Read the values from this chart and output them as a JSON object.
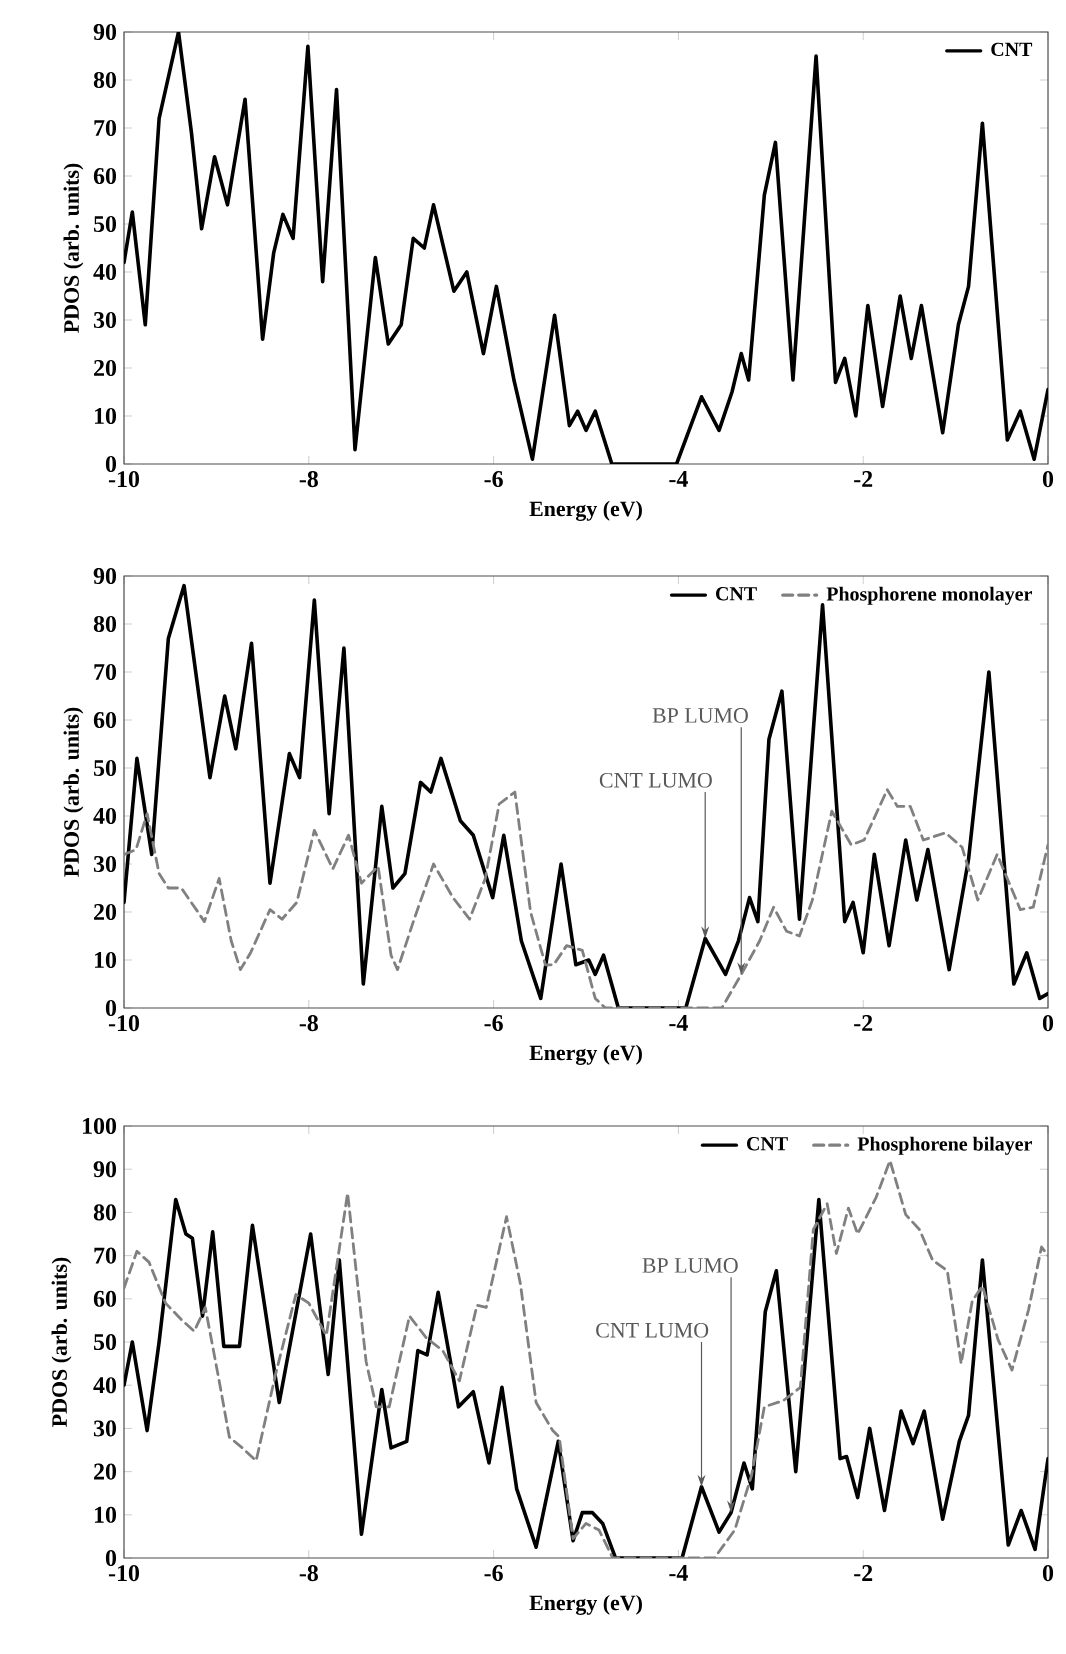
{
  "chart_data": [
    {
      "type": "line",
      "xlabel": "Energy (eV)",
      "ylabel": "PDOS (arb. units)",
      "xlim": [
        -10,
        0
      ],
      "ylim": [
        0,
        90
      ],
      "xticks": [
        -10,
        -8,
        -6,
        -4,
        -2,
        0
      ],
      "yticks": [
        0,
        10,
        20,
        30,
        40,
        50,
        60,
        70,
        80,
        90
      ],
      "legend": "top right",
      "series": [
        {
          "name": "CNT",
          "color": "#000000",
          "line_style": "solid",
          "x": [
            -10,
            -9.91,
            -9.77,
            -9.62,
            -9.55,
            -9.41,
            -9.27,
            -9.16,
            -9.02,
            -8.88,
            -8.69,
            -8.5,
            -8.38,
            -8.28,
            -8.17,
            -8.01,
            -7.85,
            -7.7,
            -7.5,
            -7.28,
            -7.14,
            -7.0,
            -6.87,
            -6.75,
            -6.65,
            -6.43,
            -6.29,
            -6.11,
            -5.97,
            -5.78,
            -5.58,
            -5.34,
            -5.18,
            -5.09,
            -5.0,
            -4.9,
            -4.72,
            -4.02,
            -3.75,
            -3.56,
            -3.42,
            -3.32,
            -3.24,
            -3.07,
            -2.95,
            -2.76,
            -2.51,
            -2.3,
            -2.2,
            -2.08,
            -1.95,
            -1.79,
            -1.6,
            -1.48,
            -1.37,
            -1.14,
            -0.97,
            -0.86,
            -0.71,
            -0.44,
            -0.3,
            -0.15,
            0
          ],
          "values": [
            42,
            52.5,
            29,
            72,
            78,
            90,
            69,
            49,
            64,
            54,
            76,
            26,
            44,
            52,
            47,
            87,
            38,
            78,
            3,
            43,
            25,
            29,
            47,
            45,
            54,
            36,
            40,
            23,
            37,
            17.5,
            1,
            31,
            8,
            11,
            7,
            11,
            0,
            0,
            14,
            7,
            15,
            23,
            17.5,
            56,
            67,
            17.5,
            85,
            17,
            22,
            10,
            33,
            12,
            35,
            22,
            33,
            6.5,
            29,
            37,
            71,
            5,
            11,
            1,
            15.5
          ]
        }
      ]
    },
    {
      "type": "line",
      "xlabel": "Energy (eV)",
      "ylabel": "PDOS (arb. units)",
      "xlim": [
        -10,
        0
      ],
      "ylim": [
        0,
        90
      ],
      "xticks": [
        -10,
        -8,
        -6,
        -4,
        -2,
        0
      ],
      "yticks": [
        0,
        10,
        20,
        30,
        40,
        50,
        60,
        70,
        80,
        90
      ],
      "legend": "top right",
      "annotations": [
        {
          "text": "CNT LUMO",
          "x": -3.71,
          "y": 14.5
        },
        {
          "text": "BP LUMO",
          "x": -3.32,
          "y": 7
        }
      ],
      "series": [
        {
          "name": "CNT",
          "color": "#000000",
          "line_style": "solid",
          "x": [
            -10,
            -9.86,
            -9.7,
            -9.52,
            -9.35,
            -9.07,
            -8.91,
            -8.79,
            -8.62,
            -8.42,
            -8.21,
            -8.1,
            -7.94,
            -7.78,
            -7.62,
            -7.41,
            -7.21,
            -7.09,
            -6.96,
            -6.79,
            -6.68,
            -6.57,
            -6.36,
            -6.22,
            -6.01,
            -5.89,
            -5.7,
            -5.49,
            -5.27,
            -5.11,
            -4.97,
            -4.9,
            -4.81,
            -4.65,
            -3.92,
            -3.71,
            -3.49,
            -3.35,
            -3.23,
            -3.14,
            -3.02,
            -2.88,
            -2.69,
            -2.44,
            -2.2,
            -2.11,
            -2.0,
            -1.88,
            -1.72,
            -1.54,
            -1.42,
            -1.3,
            -1.07,
            -0.86,
            -0.64,
            -0.37,
            -0.23,
            -0.09,
            0
          ],
          "values": [
            22,
            52,
            32,
            77,
            88,
            48,
            65,
            54,
            76,
            26,
            53,
            48,
            85,
            40.5,
            75,
            5,
            42,
            25,
            28,
            47,
            45,
            52,
            39,
            36,
            23,
            36,
            14,
            2,
            30,
            9,
            10,
            7,
            11,
            0,
            0,
            14.5,
            7,
            14,
            23,
            18,
            56,
            66,
            18.5,
            84,
            18,
            22,
            11.5,
            32,
            13,
            35,
            22.5,
            33,
            8,
            31,
            70,
            5,
            11.5,
            2,
            3
          ]
        },
        {
          "name": "Phosphorene monolayer",
          "color": "#808080",
          "line_style": "dashed",
          "x": [
            -10,
            -9.87,
            -9.75,
            -9.62,
            -9.52,
            -9.38,
            -9.2,
            -9.13,
            -8.97,
            -8.84,
            -8.74,
            -8.63,
            -8.42,
            -8.29,
            -8.13,
            -7.94,
            -7.74,
            -7.57,
            -7.43,
            -7.25,
            -7.11,
            -7.04,
            -6.86,
            -6.65,
            -6.44,
            -6.26,
            -6.09,
            -5.94,
            -5.77,
            -5.6,
            -5.44,
            -5.35,
            -5.21,
            -5.04,
            -4.9,
            -4.79,
            -3.53,
            -3.32,
            -3.12,
            -2.97,
            -2.83,
            -2.69,
            -2.55,
            -2.34,
            -2.13,
            -1.99,
            -1.74,
            -1.63,
            -1.49,
            -1.35,
            -1.11,
            -0.93,
            -0.76,
            -0.55,
            -0.3,
            -0.16,
            0
          ],
          "values": [
            32,
            33,
            40.5,
            28,
            25,
            25,
            20,
            18,
            27,
            14,
            8,
            11.5,
            20.5,
            18.5,
            22,
            37,
            29,
            36,
            26,
            29.5,
            11,
            8,
            18.5,
            30,
            23,
            18.5,
            27,
            42.5,
            45,
            20,
            9,
            9,
            13,
            12,
            2,
            0,
            0,
            7,
            14,
            21,
            16,
            15,
            22.5,
            41,
            34,
            35,
            45.5,
            42,
            42,
            35,
            36.5,
            33.5,
            22.5,
            32,
            20.5,
            21,
            34
          ]
        }
      ]
    },
    {
      "type": "line",
      "xlabel": "Energy (eV)",
      "ylabel": "PDOS (arb. units)",
      "xlim": [
        -10,
        0
      ],
      "ylim": [
        0,
        100
      ],
      "xticks": [
        -10,
        -8,
        -6,
        -4,
        -2,
        0
      ],
      "yticks": [
        0,
        10,
        20,
        30,
        40,
        50,
        60,
        70,
        80,
        90,
        100
      ],
      "legend": "top right",
      "annotations": [
        {
          "text": "CNT LUMO",
          "x": -3.75,
          "y": 16.5
        },
        {
          "text": "BP LUMO",
          "x": -3.43,
          "y": 10.5
        }
      ],
      "series": [
        {
          "name": "CNT",
          "color": "#000000",
          "line_style": "solid",
          "x": [
            -10,
            -9.91,
            -9.75,
            -9.62,
            -9.44,
            -9.33,
            -9.26,
            -9.15,
            -9.04,
            -8.92,
            -8.75,
            -8.61,
            -8.32,
            -7.98,
            -7.79,
            -7.67,
            -7.43,
            -7.21,
            -7.11,
            -6.94,
            -6.82,
            -6.72,
            -6.6,
            -6.38,
            -6.22,
            -6.05,
            -5.91,
            -5.75,
            -5.54,
            -5.3,
            -5.14,
            -5.04,
            -4.93,
            -4.82,
            -4.68,
            -3.96,
            -3.75,
            -3.56,
            -3.43,
            -3.29,
            -3.2,
            -3.06,
            -2.94,
            -2.73,
            -2.48,
            -2.25,
            -2.18,
            -2.06,
            -1.93,
            -1.77,
            -1.59,
            -1.46,
            -1.34,
            -1.14,
            -0.96,
            -0.86,
            -0.71,
            -0.43,
            -0.29,
            -0.14,
            0
          ],
          "values": [
            40,
            50,
            29.5,
            50,
            83,
            75,
            74,
            56,
            75.5,
            49,
            49,
            77,
            36,
            75,
            42.5,
            69,
            5.5,
            39,
            25.5,
            27,
            48,
            47,
            61.5,
            35,
            38.5,
            22,
            39.5,
            16,
            2.5,
            27,
            4,
            10.5,
            10.5,
            8,
            0,
            0,
            16.5,
            6,
            10.5,
            22,
            16,
            57,
            66.5,
            20,
            83,
            23,
            23.5,
            14,
            30,
            11,
            34,
            26.5,
            34,
            9,
            27,
            33,
            69,
            3,
            11,
            2,
            23
          ]
        },
        {
          "name": "Phosphorene bilayer",
          "color": "#808080",
          "line_style": "dashed",
          "x": [
            -10,
            -9.86,
            -9.73,
            -9.55,
            -9.37,
            -9.24,
            -9.12,
            -8.97,
            -8.86,
            -8.72,
            -8.57,
            -8.36,
            -8.14,
            -8.0,
            -7.81,
            -7.58,
            -7.38,
            -7.27,
            -7.13,
            -6.91,
            -6.73,
            -6.55,
            -6.37,
            -6.18,
            -6.08,
            -5.86,
            -5.71,
            -5.54,
            -5.36,
            -5.29,
            -5.14,
            -5.0,
            -4.86,
            -4.71,
            -3.61,
            -3.39,
            -3.21,
            -3.07,
            -2.86,
            -2.68,
            -2.54,
            -2.39,
            -2.29,
            -2.16,
            -2.06,
            -1.86,
            -1.71,
            -1.54,
            -1.39,
            -1.25,
            -1.09,
            -0.94,
            -0.82,
            -0.71,
            -0.54,
            -0.39,
            -0.21,
            -0.07,
            0
          ],
          "values": [
            62.5,
            71,
            68.5,
            59,
            55,
            52.5,
            58,
            41,
            28,
            25.5,
            22.5,
            42.5,
            61,
            59,
            51.5,
            84.5,
            45.5,
            35,
            35,
            56,
            51,
            48,
            41,
            58.5,
            58,
            79,
            63.5,
            36,
            29.5,
            28,
            4.5,
            8,
            6.5,
            0,
            0,
            6.5,
            19,
            35,
            36.5,
            39.5,
            76,
            82,
            70.5,
            81,
            75,
            83.5,
            92,
            79.5,
            76,
            69,
            66.5,
            45,
            59.5,
            63,
            50.5,
            43.5,
            57.5,
            72,
            70
          ]
        }
      ]
    }
  ]
}
